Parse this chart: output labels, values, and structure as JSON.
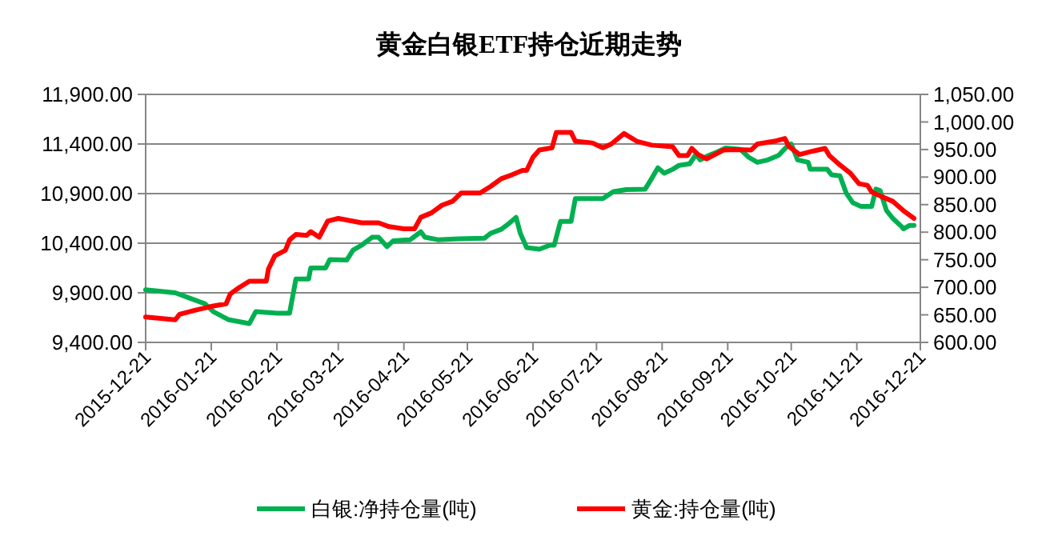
{
  "chart_data": {
    "type": "line",
    "title": "黄金白银ETF持仓近期走势",
    "xlim": [
      "2015-12-21",
      "2016-12-21"
    ],
    "xticks": [
      "2015-12-21",
      "2016-01-21",
      "2016-02-21",
      "2016-03-21",
      "2016-04-21",
      "2016-05-21",
      "2016-06-21",
      "2016-07-21",
      "2016-08-21",
      "2016-09-21",
      "2016-10-21",
      "2016-11-21",
      "2016-12-21"
    ],
    "ylim": [
      9400,
      11900
    ],
    "yticks": [
      {
        "value": 9400,
        "label": "9,400.00"
      },
      {
        "value": 9900,
        "label": "9,900.00"
      },
      {
        "value": 10400,
        "label": "10,400.00"
      },
      {
        "value": 10900,
        "label": "10,900.00"
      },
      {
        "value": 11400,
        "label": "11,400.00"
      },
      {
        "value": 11900,
        "label": "11,900.00"
      }
    ],
    "y2lim": [
      600,
      1050
    ],
    "y2ticks": [
      {
        "value": 600,
        "label": "600.00"
      },
      {
        "value": 650,
        "label": "650.00"
      },
      {
        "value": 700,
        "label": "700.00"
      },
      {
        "value": 750,
        "label": "750.00"
      },
      {
        "value": 800,
        "label": "800.00"
      },
      {
        "value": 850,
        "label": "850.00"
      },
      {
        "value": 900,
        "label": "900.00"
      },
      {
        "value": 950,
        "label": "950.00"
      },
      {
        "value": 1000,
        "label": "1,000.00"
      },
      {
        "value": 1050,
        "label": "1,050.00"
      }
    ],
    "grid": "y",
    "legend": "bottom",
    "marker": "none",
    "line_style": "solid",
    "series": [
      {
        "name": "白银:净持仓量(吨)",
        "color": "#00b050",
        "x": [
          "2015-12-21",
          "2016-01-04",
          "2016-01-11",
          "2016-01-18",
          "2016-01-22",
          "2016-01-29",
          "2016-02-08",
          "2016-02-11",
          "2016-02-21",
          "2016-02-27",
          "2016-03-01",
          "2016-03-07",
          "2016-03-08",
          "2016-03-15",
          "2016-03-17",
          "2016-03-25",
          "2016-03-28",
          "2016-04-01",
          "2016-04-06",
          "2016-04-09",
          "2016-04-13",
          "2016-04-16",
          "2016-04-24",
          "2016-04-29",
          "2016-05-01",
          "2016-05-07",
          "2016-05-17",
          "2016-05-29",
          "2016-06-01",
          "2016-06-06",
          "2016-06-10",
          "2016-06-13",
          "2016-06-15",
          "2016-06-18",
          "2016-06-24",
          "2016-06-29",
          "2016-07-01",
          "2016-07-04",
          "2016-07-09",
          "2016-07-11",
          "2016-07-24",
          "2016-07-29",
          "2016-08-04",
          "2016-08-13",
          "2016-08-16",
          "2016-08-19",
          "2016-08-22",
          "2016-08-26",
          "2016-08-29",
          "2016-09-03",
          "2016-09-06",
          "2016-09-08",
          "2016-09-12",
          "2016-09-16",
          "2016-09-20",
          "2016-09-27",
          "2016-10-01",
          "2016-10-05",
          "2016-10-10",
          "2016-10-15",
          "2016-10-19",
          "2016-10-21",
          "2016-10-24",
          "2016-10-29",
          "2016-10-30",
          "2016-11-07",
          "2016-11-09",
          "2016-11-13",
          "2016-11-16",
          "2016-11-19",
          "2016-11-23",
          "2016-11-28",
          "2016-11-30",
          "2016-12-02",
          "2016-12-05",
          "2016-12-08",
          "2016-12-12",
          "2016-12-13",
          "2016-12-16",
          "2016-12-18"
        ],
        "values": [
          9930,
          9900,
          9845,
          9790,
          9710,
          9630,
          9590,
          9710,
          9695,
          9695,
          10040,
          10040,
          10150,
          10150,
          10235,
          10230,
          10330,
          10380,
          10460,
          10460,
          10365,
          10425,
          10435,
          10515,
          10460,
          10435,
          10445,
          10450,
          10500,
          10540,
          10605,
          10660,
          10500,
          10355,
          10340,
          10380,
          10380,
          10620,
          10620,
          10850,
          10850,
          10920,
          10940,
          10945,
          11050,
          11160,
          11105,
          11145,
          11185,
          11200,
          11295,
          11240,
          11285,
          11320,
          11360,
          11345,
          11265,
          11215,
          11240,
          11285,
          11375,
          11400,
          11240,
          11215,
          11145,
          11145,
          11090,
          11080,
          10905,
          10810,
          10770,
          10770,
          10945,
          10930,
          10730,
          10650,
          10570,
          10545,
          10580,
          10580
        ]
      },
      {
        "name": "黄金:持仓量(吨)",
        "color": "#ff0000",
        "axis": "y2",
        "x": [
          "2015-12-21",
          "2016-01-04",
          "2016-01-06",
          "2016-01-14",
          "2016-01-22",
          "2016-01-28",
          "2016-01-30",
          "2016-02-03",
          "2016-02-08",
          "2016-02-16",
          "2016-02-17",
          "2016-02-20",
          "2016-02-25",
          "2016-02-27",
          "2016-03-01",
          "2016-03-06",
          "2016-03-08",
          "2016-03-12",
          "2016-03-16",
          "2016-03-21",
          "2016-04-01",
          "2016-04-09",
          "2016-04-14",
          "2016-04-21",
          "2016-04-26",
          "2016-04-29",
          "2016-05-04",
          "2016-05-09",
          "2016-05-14",
          "2016-05-18",
          "2016-05-27",
          "2016-06-01",
          "2016-06-06",
          "2016-06-11",
          "2016-06-16",
          "2016-06-18",
          "2016-06-21",
          "2016-06-24",
          "2016-06-30",
          "2016-07-02",
          "2016-07-09",
          "2016-07-11",
          "2016-07-19",
          "2016-07-24",
          "2016-07-28",
          "2016-08-03",
          "2016-08-09",
          "2016-08-16",
          "2016-08-26",
          "2016-08-29",
          "2016-09-02",
          "2016-09-04",
          "2016-09-07",
          "2016-09-11",
          "2016-09-19",
          "2016-09-25",
          "2016-10-02",
          "2016-10-05",
          "2016-10-13",
          "2016-10-18",
          "2016-10-20",
          "2016-10-25",
          "2016-10-30",
          "2016-11-06",
          "2016-11-08",
          "2016-11-13",
          "2016-11-18",
          "2016-11-22",
          "2016-11-26",
          "2016-11-28",
          "2016-12-03",
          "2016-12-08",
          "2016-12-13",
          "2016-12-18"
        ],
        "values": [
          646,
          641,
          651,
          659,
          666,
          670,
          688,
          699,
          711,
          711,
          733,
          757,
          767,
          786,
          796,
          794,
          801,
          791,
          820,
          825,
          817,
          817,
          810,
          806,
          806,
          827,
          835,
          849,
          856,
          871,
          871,
          883,
          897,
          904,
          912,
          912,
          936,
          949,
          953,
          981,
          981,
          965,
          962,
          953,
          960,
          979,
          965,
          958,
          955,
          939,
          939,
          952,
          941,
          933,
          949,
          950,
          949,
          960,
          965,
          970,
          955,
          941,
          946,
          952,
          939,
          922,
          907,
          888,
          885,
          873,
          864,
          856,
          839,
          825
        ]
      }
    ]
  }
}
